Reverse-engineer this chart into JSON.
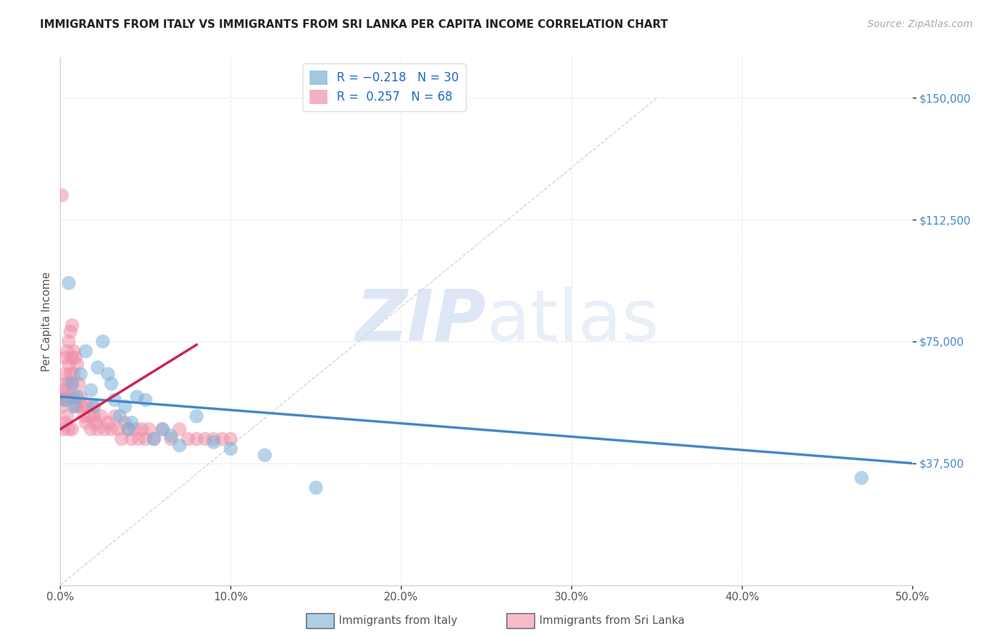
{
  "title": "IMMIGRANTS FROM ITALY VS IMMIGRANTS FROM SRI LANKA PER CAPITA INCOME CORRELATION CHART",
  "source": "Source: ZipAtlas.com",
  "ylabel": "Per Capita Income",
  "xlim": [
    0,
    0.5
  ],
  "ylim": [
    0,
    162500
  ],
  "yticks": [
    37500,
    75000,
    112500,
    150000
  ],
  "ytick_labels": [
    "$37,500",
    "$75,000",
    "$112,500",
    "$150,000"
  ],
  "xticks": [
    0.0,
    0.1,
    0.2,
    0.3,
    0.4,
    0.5
  ],
  "xtick_labels": [
    "0.0%",
    "10.0%",
    "20.0%",
    "30.0%",
    "40.0%",
    "50.0%"
  ],
  "italy_scatter_x": [
    0.003,
    0.005,
    0.007,
    0.008,
    0.01,
    0.012,
    0.015,
    0.018,
    0.02,
    0.022,
    0.025,
    0.028,
    0.03,
    0.032,
    0.035,
    0.038,
    0.04,
    0.042,
    0.045,
    0.05,
    0.055,
    0.06,
    0.065,
    0.07,
    0.08,
    0.09,
    0.1,
    0.12,
    0.15,
    0.47
  ],
  "italy_scatter_y": [
    57000,
    93000,
    62000,
    55000,
    58000,
    65000,
    72000,
    60000,
    55000,
    67000,
    75000,
    65000,
    62000,
    57000,
    52000,
    55000,
    48000,
    50000,
    58000,
    57000,
    45000,
    48000,
    46000,
    43000,
    52000,
    44000,
    42000,
    40000,
    30000,
    33000
  ],
  "srilanka_scatter_x": [
    0.001,
    0.001,
    0.002,
    0.002,
    0.002,
    0.003,
    0.003,
    0.003,
    0.003,
    0.004,
    0.004,
    0.004,
    0.005,
    0.005,
    0.005,
    0.005,
    0.006,
    0.006,
    0.006,
    0.007,
    0.007,
    0.007,
    0.007,
    0.008,
    0.008,
    0.008,
    0.009,
    0.009,
    0.01,
    0.01,
    0.011,
    0.012,
    0.013,
    0.014,
    0.015,
    0.016,
    0.017,
    0.018,
    0.019,
    0.02,
    0.021,
    0.022,
    0.024,
    0.026,
    0.028,
    0.03,
    0.032,
    0.034,
    0.036,
    0.038,
    0.04,
    0.042,
    0.044,
    0.046,
    0.048,
    0.05,
    0.052,
    0.055,
    0.06,
    0.065,
    0.07,
    0.075,
    0.08,
    0.085,
    0.09,
    0.095,
    0.1,
    0.001
  ],
  "srilanka_scatter_y": [
    58000,
    55000,
    60000,
    57000,
    48000,
    70000,
    65000,
    62000,
    50000,
    72000,
    58000,
    52000,
    75000,
    68000,
    62000,
    48000,
    78000,
    65000,
    58000,
    80000,
    70000,
    62000,
    48000,
    72000,
    65000,
    58000,
    70000,
    55000,
    68000,
    55000,
    62000,
    58000,
    55000,
    52000,
    50000,
    55000,
    52000,
    48000,
    55000,
    52000,
    50000,
    48000,
    52000,
    48000,
    50000,
    48000,
    52000,
    48000,
    45000,
    50000,
    48000,
    45000,
    48000,
    45000,
    48000,
    45000,
    48000,
    45000,
    48000,
    45000,
    48000,
    45000,
    45000,
    45000,
    45000,
    45000,
    45000,
    120000
  ],
  "italy_line_x": [
    0.0,
    0.5
  ],
  "italy_line_y": [
    58000,
    37500
  ],
  "srilanka_line_x": [
    0.0,
    0.08
  ],
  "srilanka_line_y": [
    48000,
    74000
  ],
  "diag_line_x": [
    0.0,
    0.35
  ],
  "diag_line_y": [
    0,
    150000
  ],
  "watermark_zip": "ZIP",
  "watermark_atlas": "atlas",
  "watermark_color_zip": "#c8d8f0",
  "watermark_color_atlas": "#c8d8f0",
  "italy_color": "#7ab0d8",
  "srilanka_color": "#f090a8",
  "italy_line_color": "#4488cc",
  "srilanka_line_color": "#cc2255",
  "diag_line_color": "#cccccc",
  "background_color": "#ffffff",
  "grid_color": "#e8e8e8",
  "ytick_color": "#4488cc",
  "xtick_color": "#555555"
}
